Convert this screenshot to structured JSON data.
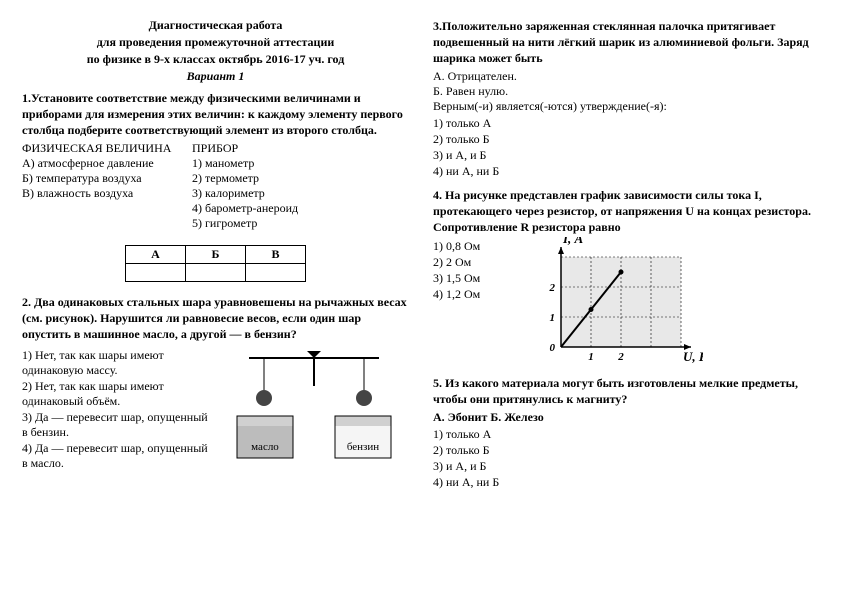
{
  "header": {
    "line1": "Диагностическая работа",
    "line2": "для проведения промежуточной аттестации",
    "line3": "по физике в 9-х классах октябрь 2016-17 уч. год",
    "variant": "Вариант 1"
  },
  "q1": {
    "text": "1.Установите соответствие между физическими величинами и приборами для измерения этих величин: к каждому элементу первого столбца подберите соответствующий элемент из второго столбца.",
    "left_head": "ФИЗИЧЕСКАЯ ВЕЛИЧИНА",
    "right_head": "ПРИБОР",
    "left": [
      "А) атмосферное давление",
      "Б) температура воздуха",
      "В) влажность воздуха"
    ],
    "right": [
      "1) манометр",
      "2) термометр",
      "3) калориметр",
      "4) барометр-анероид",
      "5) гигрометр"
    ],
    "table_heads": [
      "А",
      "Б",
      "В"
    ]
  },
  "q2": {
    "text": "2. Два одинаковых стальных шара уравновешены на рычажных весах (см. рисунок). Нарушится ли равновесие весов, если один шар опустить в машинное масло, а другой — в бензин?",
    "answers": [
      "1) Нет, так как шары имеют одинаковую массу.",
      "2) Нет, так как шары имеют одинаковый объём.",
      "3) Да — перевесит шар, опущенный в бензин.",
      "4) Да — перевесит шар, опущенный в масло."
    ],
    "label_left": "масло",
    "label_right": "бензин"
  },
  "q3": {
    "text": "3.Положительно заряженная стеклянная палочка притягивает подвешенный на нити лёгкий шарик из алюминиевой фольги. Заряд шарика может быть",
    "lines": [
      "А. Отрицателен.",
      "Б. Равен нулю."
    ],
    "sub": "Верным(-и) является(-ются) утверждение(-я):",
    "opts": [
      "1) только А",
      "2) только Б",
      "3) и А, и Б",
      "4) ни А, ни Б"
    ]
  },
  "q4": {
    "text": "4. На рисунке представлен график зависимости силы тока I, протекающего через резистор, от напряжения U на концах резистора. Сопротивление R резистора равно",
    "opts": [
      "1) 0,8 Ом",
      "2) 2 Ом",
      "3) 1,5 Ом",
      "4) 1,2 Ом"
    ],
    "graph": {
      "y_label": "I, А",
      "x_label": "U, В",
      "y_ticks": [
        "0",
        "1",
        "2"
      ],
      "x_ticks": [
        "1",
        "2"
      ],
      "points": [
        [
          0,
          0
        ],
        [
          1,
          1.25
        ],
        [
          2,
          2.5
        ]
      ],
      "xlim": [
        0,
        4
      ],
      "ylim": [
        0,
        3
      ],
      "bg": "#e8e8e8"
    }
  },
  "q5": {
    "text": "5. Из какого материала могут быть изготовлены мелкие предметы, чтобы они притянулись к магниту?",
    "line": "А. Эбонит   Б. Железо",
    "opts": [
      "1) только А",
      "2) только Б",
      "3) и А, и Б",
      "4) ни А, ни Б"
    ]
  }
}
